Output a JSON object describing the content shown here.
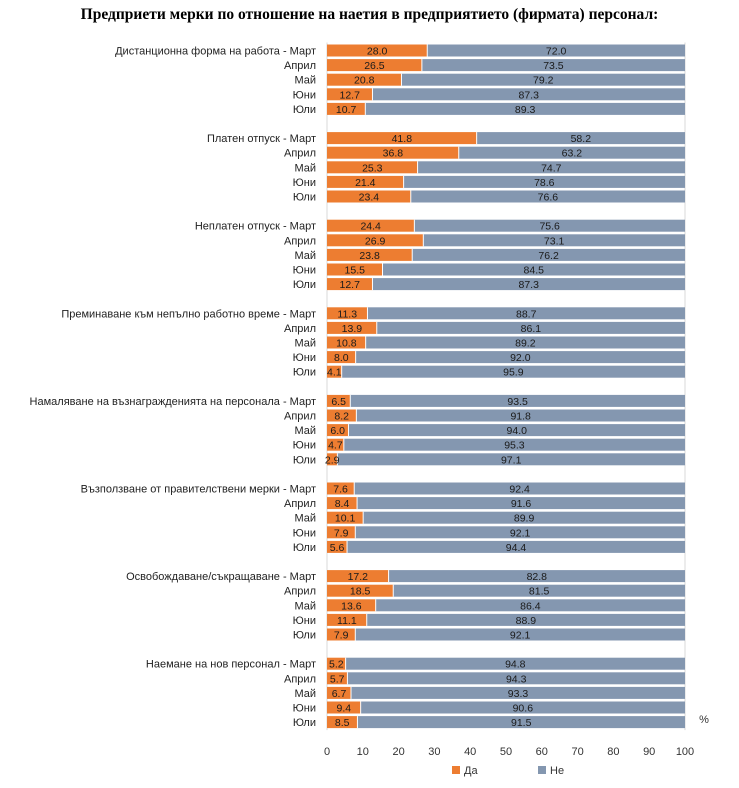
{
  "title": "Предприети мерки по отношение на наетия в предприятието (фирмата) персонал:",
  "chart_data": {
    "type": "bar",
    "orientation": "horizontal",
    "stacked": "100%",
    "unit_label": "%",
    "xlim": [
      0,
      100
    ],
    "xticks": [
      0,
      10,
      20,
      30,
      40,
      50,
      60,
      70,
      80,
      90,
      100
    ],
    "series": [
      {
        "name": "Да",
        "color": "#ED7D31"
      },
      {
        "name": "Не",
        "color": "#8497B0"
      }
    ],
    "groups": [
      {
        "measure": "Дистанционна форма на работа",
        "rows": [
          {
            "label": "Дистанционна форма на работа - Март",
            "yes": 28.0,
            "no": 72.0
          },
          {
            "label": "Април",
            "yes": 26.5,
            "no": 73.5
          },
          {
            "label": "Май",
            "yes": 20.8,
            "no": 79.2
          },
          {
            "label": "Юни",
            "yes": 12.7,
            "no": 87.3
          },
          {
            "label": "Юли",
            "yes": 10.7,
            "no": 89.3
          }
        ]
      },
      {
        "measure": "Платен отпуск",
        "rows": [
          {
            "label": "Платен отпуск - Март",
            "yes": 41.8,
            "no": 58.2
          },
          {
            "label": "Април",
            "yes": 36.8,
            "no": 63.2
          },
          {
            "label": "Май",
            "yes": 25.3,
            "no": 74.7
          },
          {
            "label": "Юни",
            "yes": 21.4,
            "no": 78.6
          },
          {
            "label": "Юли",
            "yes": 23.4,
            "no": 76.6
          }
        ]
      },
      {
        "measure": "Неплатен отпуск",
        "rows": [
          {
            "label": "Неплатен отпуск - Март",
            "yes": 24.4,
            "no": 75.6
          },
          {
            "label": "Април",
            "yes": 26.9,
            "no": 73.1
          },
          {
            "label": "Май",
            "yes": 23.8,
            "no": 76.2
          },
          {
            "label": "Юни",
            "yes": 15.5,
            "no": 84.5
          },
          {
            "label": "Юли",
            "yes": 12.7,
            "no": 87.3
          }
        ]
      },
      {
        "measure": "Преминаване към непълно работно време",
        "rows": [
          {
            "label": "Преминаване към непълно работно време - Март",
            "yes": 11.3,
            "no": 88.7
          },
          {
            "label": "Април",
            "yes": 13.9,
            "no": 86.1
          },
          {
            "label": "Май",
            "yes": 10.8,
            "no": 89.2
          },
          {
            "label": "Юни",
            "yes": 8.0,
            "no": 92.0
          },
          {
            "label": "Юли",
            "yes": 4.1,
            "no": 95.9
          }
        ]
      },
      {
        "measure": "Намаляване на възнагражденията на персонала",
        "rows": [
          {
            "label": "Намаляване на възнагражденията на персонала - Март",
            "yes": 6.5,
            "no": 93.5
          },
          {
            "label": "Април",
            "yes": 8.2,
            "no": 91.8
          },
          {
            "label": "Май",
            "yes": 6.0,
            "no": 94.0
          },
          {
            "label": "Юни",
            "yes": 4.7,
            "no": 95.3
          },
          {
            "label": "Юли",
            "yes": 2.9,
            "no": 97.1
          }
        ]
      },
      {
        "measure": "Възползване от правителствени мерки",
        "rows": [
          {
            "label": "Възползване от правителствени мерки - Март",
            "yes": 7.6,
            "no": 92.4
          },
          {
            "label": "Април",
            "yes": 8.4,
            "no": 91.6
          },
          {
            "label": "Май",
            "yes": 10.1,
            "no": 89.9
          },
          {
            "label": "Юни",
            "yes": 7.9,
            "no": 92.1
          },
          {
            "label": "Юли",
            "yes": 5.6,
            "no": 94.4
          }
        ]
      },
      {
        "measure": "Освобождаване/съкращаване",
        "rows": [
          {
            "label": "Освобождаване/съкращаване - Март",
            "yes": 17.2,
            "no": 82.8
          },
          {
            "label": "Април",
            "yes": 18.5,
            "no": 81.5
          },
          {
            "label": "Май",
            "yes": 13.6,
            "no": 86.4
          },
          {
            "label": "Юни",
            "yes": 11.1,
            "no": 88.9
          },
          {
            "label": "Юли",
            "yes": 7.9,
            "no": 92.1
          }
        ]
      },
      {
        "measure": "Наемане на нов персонал",
        "rows": [
          {
            "label": "Наемане на нов персонал - Март",
            "yes": 5.2,
            "no": 94.8
          },
          {
            "label": "Април",
            "yes": 5.7,
            "no": 94.3
          },
          {
            "label": "Май",
            "yes": 6.7,
            "no": 93.3
          },
          {
            "label": "Юни",
            "yes": 9.4,
            "no": 90.6
          },
          {
            "label": "Юли",
            "yes": 8.5,
            "no": 91.5
          }
        ]
      }
    ]
  }
}
